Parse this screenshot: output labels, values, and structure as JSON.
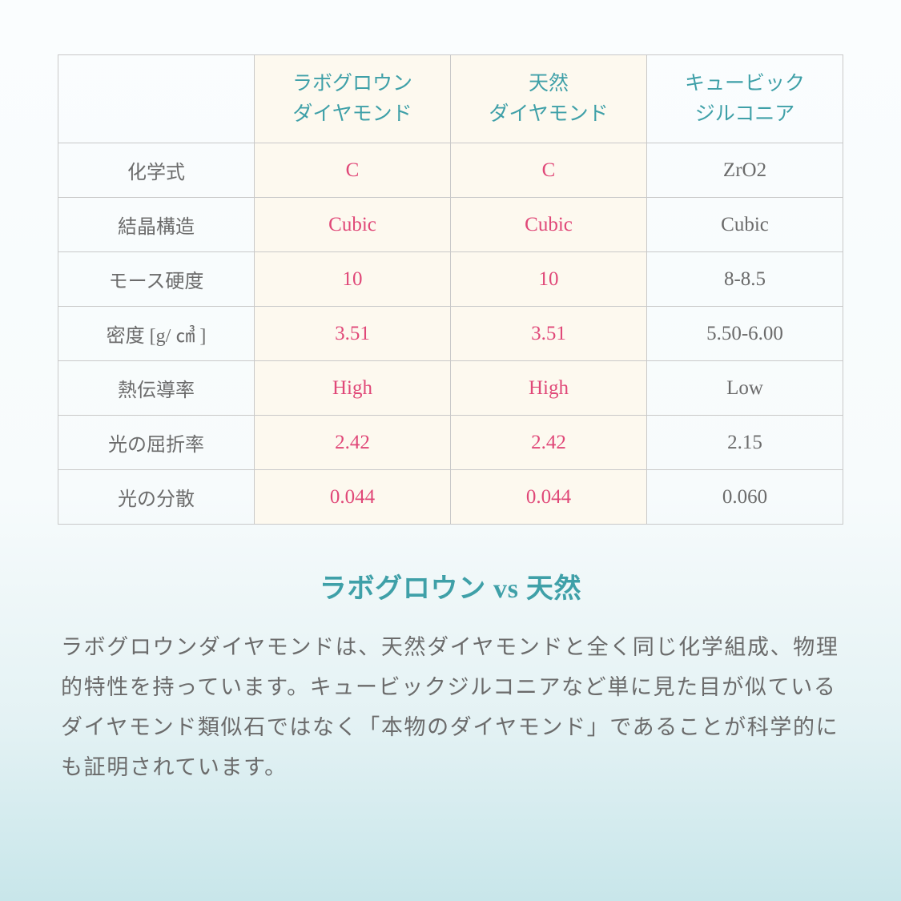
{
  "table": {
    "headers": {
      "blank": "",
      "col1_line1": "ラボグロウン",
      "col1_line2": "ダイヤモンド",
      "col2_line1": "天然",
      "col2_line2": "ダイヤモンド",
      "col3_line1": "キュービック",
      "col3_line2": "ジルコニア"
    },
    "rows": [
      {
        "label": "化学式",
        "c1": "C",
        "c2": "C",
        "c3": "ZrO2"
      },
      {
        "label": "結晶構造",
        "c1": "Cubic",
        "c2": "Cubic",
        "c3": "Cubic"
      },
      {
        "label": "モース硬度",
        "c1": "10",
        "c2": "10",
        "c3": "8-8.5"
      },
      {
        "label": "密度 [g/ ㎤ ]",
        "c1": "3.51",
        "c2": "3.51",
        "c3": "5.50-6.00"
      },
      {
        "label": "熱伝導率",
        "c1": "High",
        "c2": "High",
        "c3": "Low"
      },
      {
        "label": "光の屈折率",
        "c1": "2.42",
        "c2": "2.42",
        "c3": "2.15"
      },
      {
        "label": "光の分散",
        "c1": "0.044",
        "c2": "0.044",
        "c3": "0.060"
      }
    ]
  },
  "title": "ラボグロウン vs 天然",
  "paragraph": "ラボグロウンダイヤモンドは、天然ダイヤモンドと全く同じ化学組成、物理的特性を持っています。キュービックジルコニアなど単に見た目が似ているダイヤモンド類似石ではなく「本物のダイヤモンド」であることが科学的にも証明されています。",
  "colors": {
    "teal": "#3fa0a8",
    "pink": "#e04878",
    "gray": "#6b6b6b",
    "cream": "#fdf9ef",
    "border": "#c9c9c9"
  }
}
